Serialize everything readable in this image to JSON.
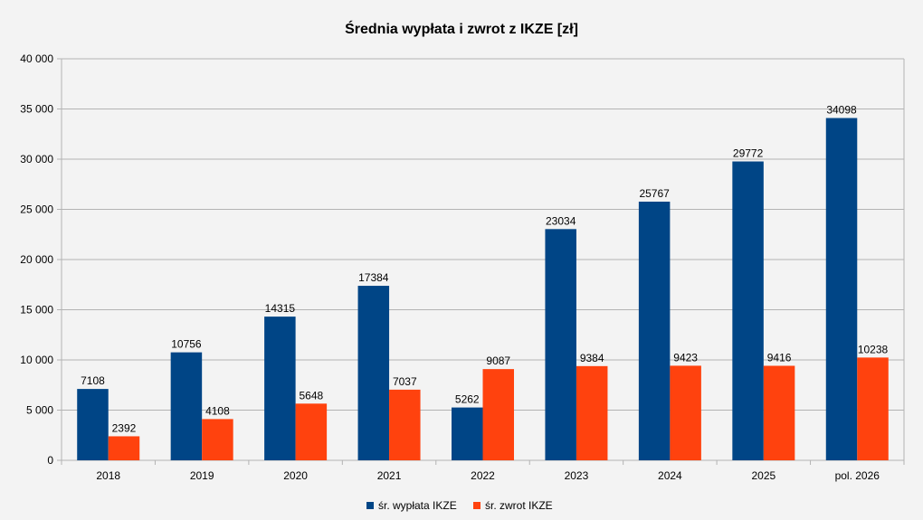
{
  "chart_data": {
    "type": "bar",
    "title": "Średnia wypłata i zwrot z IKZE [zł]",
    "categories": [
      "2018",
      "2019",
      "2020",
      "2021",
      "2022",
      "2023",
      "2024",
      "2025",
      "pol. 2026"
    ],
    "series": [
      {
        "name": "śr. wypłata IKZE",
        "color": "#004586",
        "values": [
          7108,
          10756,
          14315,
          17384,
          5262,
          23034,
          25767,
          29772,
          34098
        ]
      },
      {
        "name": "śr. zwrot IKZE",
        "color": "#ff420e",
        "values": [
          2392,
          4108,
          5648,
          7037,
          9087,
          9384,
          9423,
          9416,
          10238
        ]
      }
    ],
    "ylim": [
      0,
      40000
    ],
    "yticks": [
      0,
      5000,
      10000,
      15000,
      20000,
      25000,
      30000,
      35000,
      40000
    ],
    "ytick_labels": [
      "0",
      "5 000",
      "10 000",
      "15 000",
      "20 000",
      "25 000",
      "30 000",
      "35 000",
      "40 000"
    ],
    "grid": true,
    "legend_position": "bottom"
  }
}
